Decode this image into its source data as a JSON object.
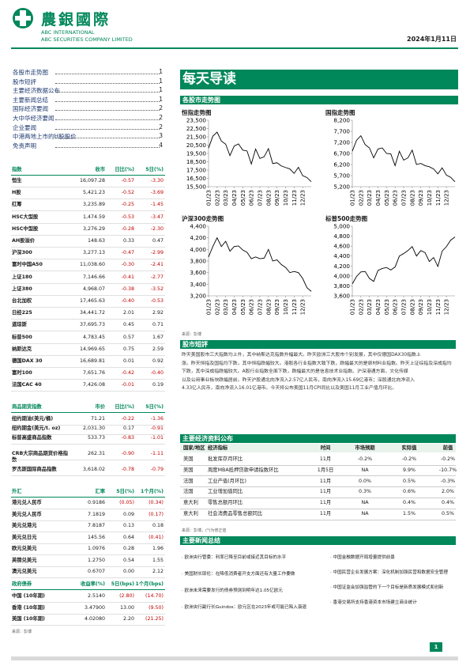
{
  "header": {
    "brand": "農銀國際",
    "en1": "ABC INTERNATIONAL",
    "en2": "ABC SECURITIES COMPANY LIMITED",
    "date": "2024年1月11日"
  },
  "toc": {
    "items": [
      {
        "title": "各股市走势图",
        "page": "1"
      },
      {
        "title": "股市短評",
        "page": "1"
      },
      {
        "title": "主要经济数据公布",
        "page": "1"
      },
      {
        "title": "主要新闻总结",
        "page": "1"
      },
      {
        "title": "国际经济要闻",
        "page": "2"
      },
      {
        "title": "大中华经济要闻",
        "page": "2"
      },
      {
        "title": "企业要闻",
        "page": "2"
      },
      {
        "title": "中港两地上市的H股股价",
        "page": "3"
      },
      {
        "title": "免责声明",
        "page": "4"
      }
    ]
  },
  "indices": {
    "headers": [
      "指数",
      "收市",
      "日比(%)",
      "5日(%)"
    ],
    "rows": [
      [
        "恒生",
        "16,097.28",
        "-0.57",
        "-3.30"
      ],
      [
        "H股",
        "5,421.23",
        "-0.52",
        "-3.69"
      ],
      [
        "红筹",
        "3,235.89",
        "-0.25",
        "-1.45"
      ],
      [
        "HSC大型股",
        "1,474.59",
        "-0.53",
        "-3.47"
      ],
      [
        "HSC中型股",
        "3,276.29",
        "-0.28",
        "-2.30"
      ],
      [
        "AH股溢价",
        "148.63",
        "0.33",
        "0.47"
      ],
      [
        "沪深300",
        "3,277.13",
        "-0.47",
        "-2.99"
      ],
      [
        "富时中国A50",
        "11,038.60",
        "-0.30",
        "-2.41"
      ],
      [
        "上证180",
        "7,146.66",
        "-0.41",
        "-2.77"
      ],
      [
        "上证380",
        "4,968.07",
        "-0.38",
        "-3.52"
      ],
      [
        "台北加权",
        "17,465.63",
        "-0.40",
        "-0.53"
      ],
      [
        "日经225",
        "34,441.72",
        "2.01",
        "2.92"
      ],
      [
        "道琼斯",
        "37,695.73",
        "0.45",
        "0.71"
      ],
      [
        "标普500",
        "4,783.45",
        "0.57",
        "1.67"
      ],
      [
        "纳斯达克",
        "14,969.65",
        "0.75",
        "2.59"
      ],
      [
        "德国DAX 30",
        "16,689.81",
        "0.01",
        "0.92"
      ],
      [
        "富时100",
        "7,651.76",
        "-0.42",
        "-0.40"
      ],
      [
        "法国CAC 40",
        "7,426.08",
        "-0.01",
        "0.19"
      ]
    ]
  },
  "commodities": {
    "headers": [
      "商品期货指数",
      "市价",
      "日比(%)",
      "5日(%)"
    ],
    "rows": [
      [
        "纽约期油(美元/桶)",
        "71.21",
        "-0.22",
        "-1.36"
      ],
      [
        "纽约期金(美元/t. oz)",
        "2,031.30",
        "0.17",
        "-0.91"
      ],
      [
        "标普高盛商品指数",
        "533.73",
        "-0.83",
        "-1.01"
      ],
      [
        "CRB大宗商品期货价格指数",
        "262.31",
        "-0.90",
        "-1.11"
      ],
      [
        "罗杰斯国际商品指数",
        "3,618.02",
        "-0.78",
        "-0.79"
      ]
    ]
  },
  "fx": {
    "headers": [
      "外汇",
      "汇率",
      "5日(%)",
      "1个月(%)"
    ],
    "rows": [
      [
        "港元兑人民币",
        "0.9186",
        "(0.05)",
        "(0.34)"
      ],
      [
        "美元兑人民币",
        "7.1819",
        "0.09",
        "(0.17)"
      ],
      [
        "美元兑港元",
        "7.8187",
        "0.13",
        "0.18"
      ],
      [
        "美元兑日元",
        "145.56",
        "0.64",
        "(0.41)"
      ],
      [
        "欧元兑美元",
        "1.0976",
        "0.28",
        "1.96"
      ],
      [
        "英镑兑美元",
        "1.2750",
        "0.54",
        "1.55"
      ],
      [
        "澳元兑美元",
        "0.6707",
        "0.00",
        "2.12"
      ]
    ]
  },
  "bonds": {
    "headers": [
      "政府债券",
      "收益率(%)",
      "5日(bps)",
      "1个月(bps)"
    ],
    "rows": [
      [
        "中国 (10年期)",
        "2.5140",
        "(2.80)",
        "(14.70)"
      ],
      [
        "香港 (10年期)",
        "3.47900",
        "13.00",
        "(9.50)"
      ],
      [
        "美国 (10年期)",
        "4.02080",
        "2.20",
        "(21.25)"
      ]
    ],
    "source": "来源：彭博"
  },
  "banner": "每天导读",
  "charts_section": "各股市走势图",
  "chart_data": [
    {
      "type": "line",
      "title": "恒指走势图",
      "color": "#000000",
      "categories": [
        "01/23",
        null,
        "02/23",
        null,
        "03/23",
        null,
        "04/23",
        null,
        "05/23",
        null,
        "06/23",
        null,
        "07/23",
        null,
        "08/23",
        null,
        "09/23",
        null,
        "10/23",
        null,
        "11/23",
        null,
        "12/23",
        null,
        null
      ],
      "values": [
        20150,
        21580,
        22070,
        20990,
        20620,
        19240,
        20400,
        20650,
        19900,
        19800,
        18230,
        20030,
        18900,
        19100,
        20080,
        18280,
        18380,
        18000,
        17810,
        17640,
        17100,
        17830,
        16830,
        16600,
        16097
      ],
      "ylim": [
        15500,
        23500
      ],
      "yticks": [
        {
          "value": 15500,
          "label": "15,500"
        },
        {
          "value": 16500,
          "label": "16,500"
        },
        {
          "value": 17500,
          "label": "17,500"
        },
        {
          "value": 18500,
          "label": "18,500"
        },
        {
          "value": 19500,
          "label": "19,500"
        },
        {
          "value": 20500,
          "label": "20,500"
        },
        {
          "value": 21500,
          "label": "21,500"
        },
        {
          "value": 22500,
          "label": "22,500"
        },
        {
          "value": 23500,
          "label": "23,500"
        }
      ],
      "grid": false
    },
    {
      "type": "line",
      "title": "国指走势图",
      "color": "#000000",
      "categories": [
        "01/23",
        null,
        "02/23",
        null,
        "03/23",
        null,
        "04/23",
        null,
        "05/23",
        null,
        "06/23",
        null,
        "07/23",
        null,
        "08/23",
        null,
        "09/23",
        null,
        "10/23",
        null,
        "11/23",
        null,
        "12/23",
        null,
        null
      ],
      "values": [
        6800,
        7300,
        7500,
        7100,
        6950,
        6500,
        6900,
        6950,
        6700,
        6680,
        6150,
        6800,
        6400,
        6500,
        6850,
        6200,
        6250,
        6150,
        6100,
        6000,
        5780,
        6050,
        5720,
        5620,
        5421
      ],
      "ylim": [
        5200,
        8200
      ],
      "yticks": [
        {
          "value": 5200,
          "label": "5,200"
        },
        {
          "value": 5700,
          "label": "5,700"
        },
        {
          "value": 6200,
          "label": "6,200"
        },
        {
          "value": 6700,
          "label": "6,700"
        },
        {
          "value": 7200,
          "label": "7,200"
        },
        {
          "value": 7700,
          "label": "7,700"
        },
        {
          "value": 8200,
          "label": "8,200"
        }
      ],
      "grid": false
    },
    {
      "type": "line",
      "title": "沪深300走势图",
      "color": "#000000",
      "categories": [
        "01/23",
        null,
        "02/23",
        null,
        "03/23",
        null,
        "04/23",
        null,
        "05/23",
        null,
        "06/23",
        null,
        "07/23",
        null,
        "08/23",
        null,
        "09/23",
        null,
        "10/23",
        null,
        "11/23",
        null,
        "12/23",
        null,
        null
      ],
      "values": [
        3870,
        4050,
        4200,
        4050,
        4140,
        3970,
        4050,
        4060,
        3990,
        3950,
        3840,
        3870,
        3840,
        3850,
        4000,
        3800,
        3820,
        3740,
        3690,
        3600,
        3620,
        3600,
        3500,
        3340,
        3277
      ],
      "ylim": [
        3200,
        4400
      ],
      "yticks": [
        {
          "value": 3200,
          "label": "3,200"
        },
        {
          "value": 3400,
          "label": "3,400"
        },
        {
          "value": 3600,
          "label": "3,600"
        },
        {
          "value": 3800,
          "label": "3,800"
        },
        {
          "value": 4000,
          "label": "4,000"
        },
        {
          "value": 4200,
          "label": "4,200"
        },
        {
          "value": 4400,
          "label": "4,400"
        }
      ],
      "grid": false
    },
    {
      "type": "line",
      "title": "标普500走势图",
      "color": "#000000",
      "categories": [
        "01/23",
        null,
        "02/23",
        null,
        "03/23",
        null,
        "04/23",
        null,
        "05/23",
        null,
        "06/23",
        null,
        "07/23",
        null,
        "08/23",
        null,
        "09/23",
        null,
        "10/23",
        null,
        "11/23",
        null,
        "12/23",
        null,
        null
      ],
      "values": [
        3840,
        3990,
        4080,
        4090,
        3950,
        3890,
        4110,
        4150,
        4170,
        4120,
        4180,
        4400,
        4450,
        4510,
        4590,
        4400,
        4510,
        4470,
        4290,
        4370,
        4190,
        4500,
        4590,
        4720,
        4783
      ],
      "ylim": [
        3600,
        5000
      ],
      "yticks": [
        {
          "value": 3600,
          "label": "3,600"
        },
        {
          "value": 3800,
          "label": "3,800"
        },
        {
          "value": 4000,
          "label": "4,000"
        },
        {
          "value": 4200,
          "label": "4,200"
        },
        {
          "value": 4400,
          "label": "4,400"
        },
        {
          "value": 4600,
          "label": "4,600"
        },
        {
          "value": 4800,
          "label": "4,800"
        },
        {
          "value": 5000,
          "label": "5,000"
        }
      ],
      "grid": false
    }
  ],
  "chart_source": "来源：彭博",
  "commentary": {
    "title": "股市短評",
    "lines": [
      "昨天美国股市三大指数均上升，其中纳斯达克指数升幅最大。昨天欧洲三大股市个别发展，其中仅德国DAX30指数上",
      "涨。昨天恒指及国指均下跌，其中恒指跌幅较大。港股各行业指数大致下跌，跌幅最大的是原材料业指数。昨天上证综指及深成指均",
      "下跌，其中深成指跌幅较大。A股行业指数全面下跌，跌幅最大的是信息技术业指数。沪深港通方面，文化传媒",
      "以及公用事业板块跌幅居前。昨天沪股通北向净流入2.57亿人民币，南向净流入15.69亿港币；深股通北向净流入",
      "4.33亿人民币，南向净流入16.01亿港币。今天将公布美国11月CPI同比以及美国11月工业产值月环比。"
    ]
  },
  "econ": {
    "title": "主要经济资料公布",
    "headers": [
      "国家/地区",
      "经济指标",
      "时间",
      "市场预期",
      "实际值",
      "前值"
    ],
    "rows": [
      [
        "美国",
        "批发库存月环比",
        "11月",
        "-0.2%",
        "-0.2%",
        "-0.2%"
      ],
      [
        "美国",
        "周度MBA抵押贷款申请指数环比",
        "1月5日",
        "NA",
        "9.9%",
        "-10.7%"
      ],
      [
        "法国",
        "工业产值(月环比)",
        "11月",
        "0.0%",
        "0.5%",
        "-0.3%"
      ],
      [
        "法国",
        "工业增加值同比",
        "11月",
        "0.3%",
        "0.6%",
        "2.0%"
      ],
      [
        "意大利",
        "零售总额月环比",
        "11月",
        "NA",
        "0.4%",
        "0.4%"
      ],
      [
        "意大利",
        "社会消费品零售总额同比",
        "11月",
        "NA",
        "1.5%",
        "0.5%"
      ]
    ],
    "source": "来源：彭博，(*)为修正值"
  },
  "news": {
    "title": "主要新闻总结",
    "left": [
      "· 欧洲央行管委：利率已降至目前或接近其目标的水平",
      "· 美国财长耶伦：在降低消费者开支方面还有大量工作要做",
      "· 欧洲未来需要发行的债券预测到明年达1.05亿欧元",
      "· 欧洲央行副行长Guindos：欧元区在2023年或可能已陷入衰退"
    ],
    "right": [
      "· 中国金融数据开局增量提供前景",
      "· 中国民营企业发展方案：深化机制加强民营和数据安全管理",
      "· 中国证监会加强监管的下一个目标是新质发展模式和创新",
      "· 香港交易所支持香港资本市场建立商业统计"
    ]
  },
  "page_number": "1"
}
